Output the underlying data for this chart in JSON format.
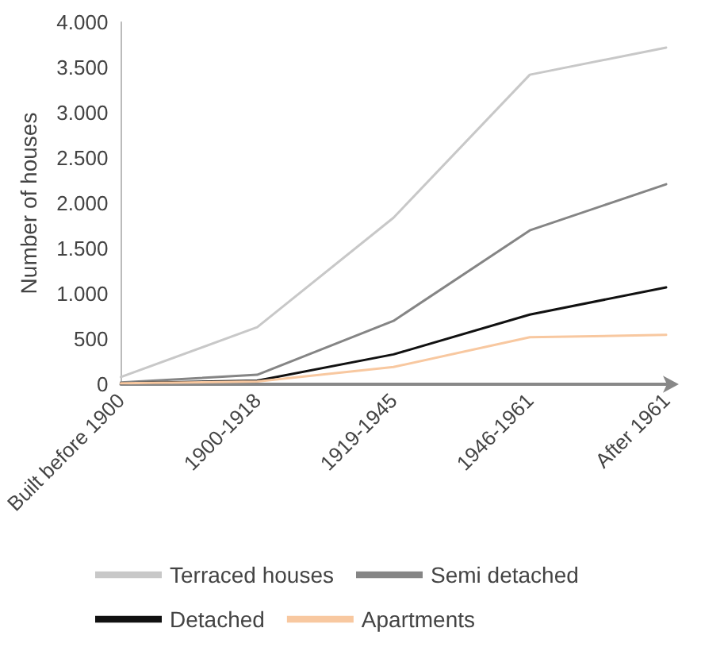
{
  "chart_data": {
    "type": "line",
    "ylabel": "Number of houses",
    "categories": [
      "Built before 1900",
      "1900-1918",
      "1919-1945",
      "1946-1961",
      "After 1961"
    ],
    "series": [
      {
        "name": "Terraced houses",
        "color": "#c8c8c8",
        "values": [
          80,
          630,
          1840,
          3420,
          3720
        ]
      },
      {
        "name": "Semi detached",
        "color": "#858585",
        "values": [
          20,
          105,
          700,
          1700,
          2210
        ]
      },
      {
        "name": "Detached",
        "color": "#111111",
        "values": [
          10,
          40,
          330,
          770,
          1070
        ]
      },
      {
        "name": "Apartments",
        "color": "#f8c8a0",
        "values": [
          10,
          30,
          190,
          520,
          545
        ]
      }
    ],
    "ylim": [
      0,
      4000
    ],
    "yticks": [
      {
        "value": 0,
        "label": "0"
      },
      {
        "value": 500,
        "label": "500"
      },
      {
        "value": 1000,
        "label": "1.000"
      },
      {
        "value": 1500,
        "label": "1.500"
      },
      {
        "value": 2000,
        "label": "2.000"
      },
      {
        "value": 2500,
        "label": "2.500"
      },
      {
        "value": 3000,
        "label": "3.000"
      },
      {
        "value": 3500,
        "label": "3.500"
      },
      {
        "value": 4000,
        "label": "4.000"
      }
    ],
    "grid": false,
    "legend": "bottom",
    "marker": "none",
    "line_style": "solid"
  }
}
